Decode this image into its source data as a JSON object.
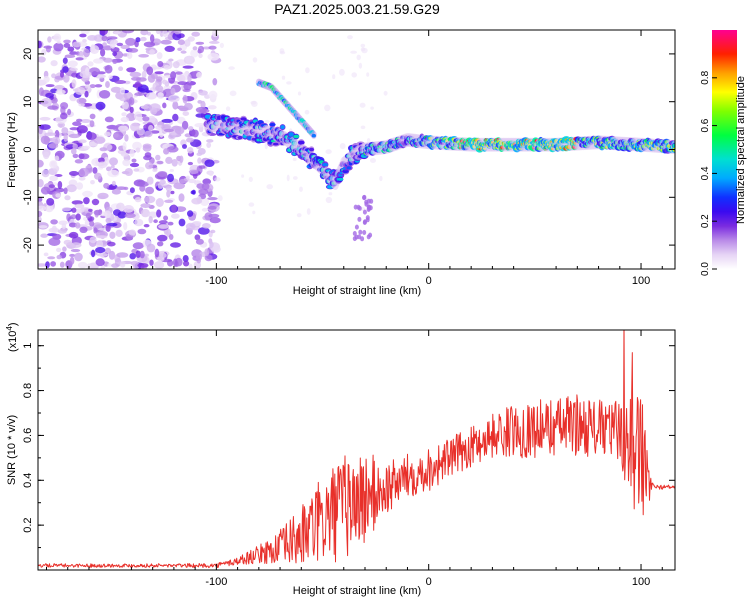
{
  "title": "PAZ1.2025.003.21.59.G29",
  "chart_data": [
    {
      "type": "heatmap",
      "xlabel": "Height of straight line (km)",
      "ylabel": "Frequency (Hz)",
      "xlim": [
        -184,
        116
      ],
      "ylim": [
        -25,
        25
      ],
      "x_ticks": [
        -100,
        0,
        100
      ],
      "y_ticks": [
        -20,
        -10,
        0,
        10,
        20
      ],
      "colorbar": {
        "label": "Normalized spectral amplitude",
        "ticks": [
          "0.0",
          "0.2",
          "0.4",
          "0.6",
          "0.8"
        ],
        "range": [
          0,
          1
        ]
      },
      "noise_region_x": [
        -184,
        -100
      ],
      "ridge": {
        "x": [
          -100,
          -90,
          -80,
          -70,
          -60,
          -50,
          -44,
          -40,
          -35,
          -30,
          -20,
          -10,
          0,
          20,
          40,
          60,
          80,
          100,
          116
        ],
        "freq": [
          5,
          4.5,
          4,
          3,
          0,
          -4,
          -7,
          -3,
          -1,
          0,
          0.5,
          2,
          1.5,
          1,
          1,
          1,
          1.5,
          1,
          0.5
        ]
      },
      "upper_branch": {
        "x": [
          -80,
          -74,
          -68,
          -60,
          -54
        ],
        "freq": [
          14,
          13,
          10,
          6,
          3
        ]
      }
    },
    {
      "type": "line",
      "xlabel": "Height of straight line (km)",
      "ylabel": "SNR (10 * v/v)",
      "scale_label": "(x10",
      "scale_exp": "4",
      "xlim": [
        -184,
        116
      ],
      "ylim": [
        0,
        1.07
      ],
      "x_ticks": [
        -100,
        0,
        100
      ],
      "y_ticks": [
        0.2,
        0.4,
        0.6,
        0.8,
        1
      ],
      "series": [
        {
          "color": "#e8302a",
          "x": [
            -184,
            -150,
            -120,
            -100,
            -90,
            -80,
            -70,
            -60,
            -50,
            -40,
            -30,
            -20,
            -10,
            0,
            10,
            20,
            30,
            40,
            50,
            60,
            70,
            80,
            90,
            95,
            100,
            104,
            106,
            110,
            116
          ],
          "y": [
            0.02,
            0.02,
            0.02,
            0.02,
            0.04,
            0.07,
            0.1,
            0.15,
            0.22,
            0.28,
            0.32,
            0.36,
            0.42,
            0.45,
            0.5,
            0.55,
            0.6,
            0.62,
            0.63,
            0.64,
            0.65,
            0.63,
            0.62,
            0.6,
            0.5,
            0.38,
            0.37,
            0.37,
            0.37
          ],
          "spread": [
            0.008,
            0.008,
            0.008,
            0.01,
            0.02,
            0.04,
            0.08,
            0.14,
            0.2,
            0.24,
            0.22,
            0.12,
            0.1,
            0.1,
            0.09,
            0.09,
            0.1,
            0.12,
            0.13,
            0.13,
            0.14,
            0.13,
            0.14,
            0.3,
            0.3,
            0.08,
            0.01,
            0.01,
            0.01
          ]
        }
      ]
    }
  ]
}
